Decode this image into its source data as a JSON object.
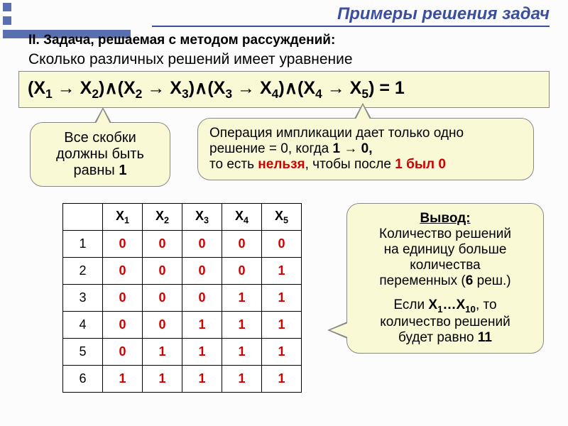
{
  "title": {
    "text": "Примеры решения задач",
    "color": "#3b4f9e",
    "fontsize": 24
  },
  "line2": {
    "text": "II.  Задача, решаемая с методом рассуждений:",
    "fontsize": 19
  },
  "line3": {
    "text": "Сколько различных решений имеет уравнение",
    "fontsize": 21
  },
  "formula": {
    "html": "(X<sub>1</sub> → X<sub>2</sub>)∧(X<sub>2</sub> → X<sub>3</sub>)∧(X<sub>3</sub> → X<sub>4</sub>)∧(X<sub>4</sub> → X<sub>5</sub>) = 1",
    "fontsize": 25,
    "background": "#faf9d6"
  },
  "callout1": {
    "lines": [
      "Все скобки",
      "должны быть"
    ],
    "lastline_pre": "равны ",
    "lastline_bold": "1",
    "fontsize": 20
  },
  "callout2": {
    "l1": "Операция импликации дает только одно",
    "l2_a": "решение = 0, когда ",
    "l2_b": "1 → 0,",
    "l3_a": "то есть ",
    "l3_red1": "нельзя",
    "l3_b": ", чтобы после ",
    "l3_bold": "1 был 0",
    "fontsize": 19
  },
  "callout3": {
    "heading": "Вывод:",
    "l1": "Количество решений",
    "l2": "на единицу больше",
    "l3": "количества",
    "l4_a": "переменных (",
    "l4_bold": "6",
    "l4_b": " реш.)",
    "l6_a": "Если ",
    "l6_b": "X",
    "l6_s1": "1",
    "l6_c": "…X",
    "l6_s2": "10",
    "l6_d": ", то",
    "l7": "количество решений",
    "l8_a": "будет равно ",
    "l8_bold": "11",
    "fontsize": 19
  },
  "table": {
    "headers": [
      "",
      "X1",
      "X2",
      "X3",
      "X4",
      "X5"
    ],
    "rows": [
      {
        "n": "1",
        "v": [
          "0",
          "0",
          "0",
          "0",
          "0"
        ]
      },
      {
        "n": "2",
        "v": [
          "0",
          "0",
          "0",
          "0",
          "1"
        ]
      },
      {
        "n": "3",
        "v": [
          "0",
          "0",
          "0",
          "1",
          "1"
        ]
      },
      {
        "n": "4",
        "v": [
          "0",
          "0",
          "1",
          "1",
          "1"
        ]
      },
      {
        "n": "5",
        "v": [
          "0",
          "1",
          "1",
          "1",
          "1"
        ]
      },
      {
        "n": "6",
        "v": [
          "1",
          "1",
          "1",
          "1",
          "1"
        ]
      }
    ],
    "cell_color": "#d00000",
    "fontsize": 18
  },
  "deco": {
    "color": "#5a6fb0"
  }
}
